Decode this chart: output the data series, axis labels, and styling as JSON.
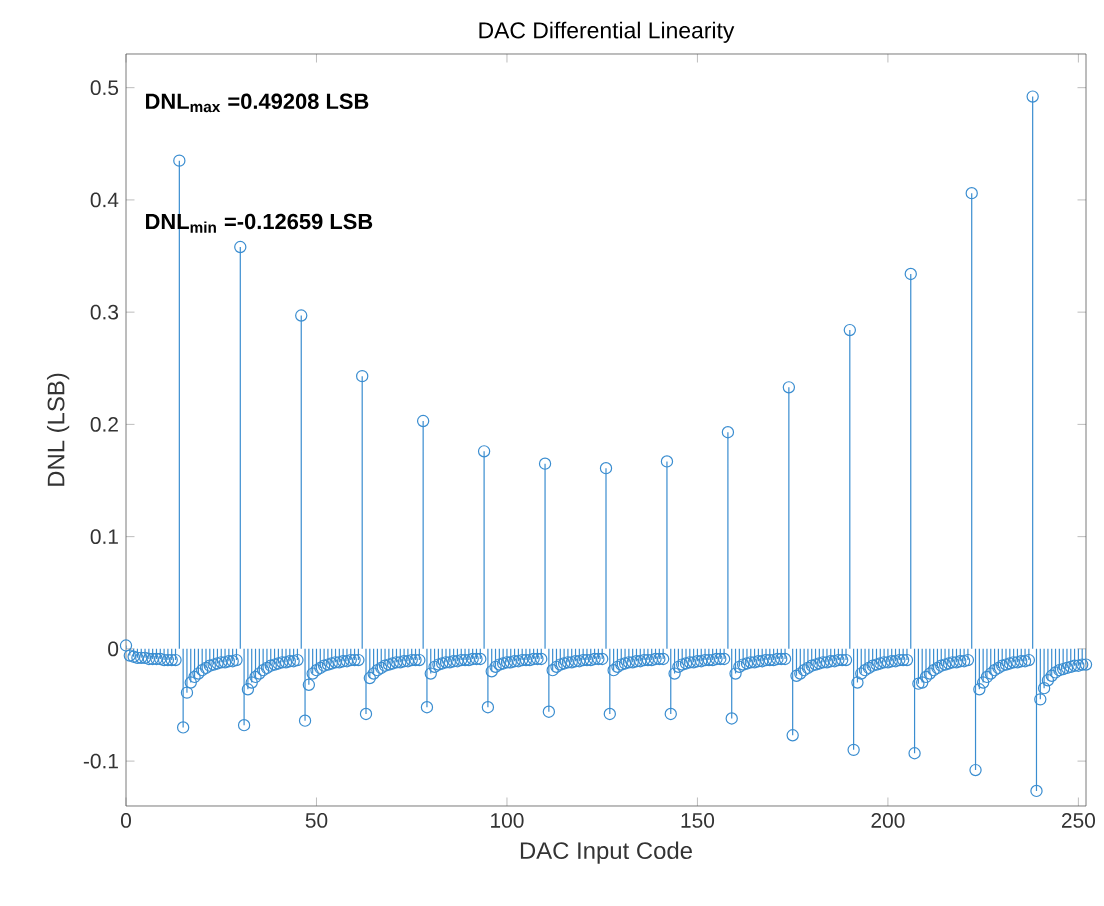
{
  "chart_data": {
    "type": "lollipop",
    "title": "DAC Differential Linearity",
    "xlabel": "DAC Input Code",
    "ylabel": "DNL (LSB)",
    "annotations": [
      "DNL$_{max}$ =0.49208 LSB",
      "DNL$_{min}$ =-0.12659 LSB"
    ],
    "x": [
      0,
      1,
      2,
      3,
      4,
      5,
      6,
      7,
      8,
      9,
      10,
      11,
      12,
      13,
      14,
      15,
      16,
      17,
      18,
      19,
      20,
      21,
      22,
      23,
      24,
      25,
      26,
      27,
      28,
      29,
      30,
      31,
      32,
      33,
      34,
      35,
      36,
      37,
      38,
      39,
      40,
      41,
      42,
      43,
      44,
      45,
      46,
      47,
      48,
      49,
      50,
      51,
      52,
      53,
      54,
      55,
      56,
      57,
      58,
      59,
      60,
      61,
      62,
      63,
      64,
      65,
      66,
      67,
      68,
      69,
      70,
      71,
      72,
      73,
      74,
      75,
      76,
      77,
      78,
      79,
      80,
      81,
      82,
      83,
      84,
      85,
      86,
      87,
      88,
      89,
      90,
      91,
      92,
      93,
      94,
      95,
      96,
      97,
      98,
      99,
      100,
      101,
      102,
      103,
      104,
      105,
      106,
      107,
      108,
      109,
      110,
      111,
      112,
      113,
      114,
      115,
      116,
      117,
      118,
      119,
      120,
      121,
      122,
      123,
      124,
      125,
      126,
      127,
      128,
      129,
      130,
      131,
      132,
      133,
      134,
      135,
      136,
      137,
      138,
      139,
      140,
      141,
      142,
      143,
      144,
      145,
      146,
      147,
      148,
      149,
      150,
      151,
      152,
      153,
      154,
      155,
      156,
      157,
      158,
      159,
      160,
      161,
      162,
      163,
      164,
      165,
      166,
      167,
      168,
      169,
      170,
      171,
      172,
      173,
      174,
      175,
      176,
      177,
      178,
      179,
      180,
      181,
      182,
      183,
      184,
      185,
      186,
      187,
      188,
      189,
      190,
      191,
      192,
      193,
      194,
      195,
      196,
      197,
      198,
      199,
      200,
      201,
      202,
      203,
      204,
      205,
      206,
      207,
      208,
      209,
      210,
      211,
      212,
      213,
      214,
      215,
      216,
      217,
      218,
      219,
      220,
      221,
      222,
      223,
      224,
      225,
      226,
      227,
      228,
      229,
      230,
      231,
      232,
      233,
      234,
      235,
      236,
      237,
      238,
      239,
      240,
      241,
      242,
      243,
      244,
      245,
      246,
      247,
      248,
      249,
      250,
      251,
      252
    ],
    "values": [
      0.003,
      -0.006,
      -0.007,
      -0.008,
      -0.008,
      -0.008,
      -0.009,
      -0.009,
      -0.009,
      -0.009,
      -0.01,
      -0.01,
      -0.01,
      -0.01,
      0.435,
      -0.07,
      -0.039,
      -0.03,
      -0.025,
      -0.022,
      -0.019,
      -0.017,
      -0.015,
      -0.014,
      -0.013,
      -0.012,
      -0.012,
      -0.011,
      -0.011,
      -0.01,
      0.358,
      -0.068,
      -0.036,
      -0.03,
      -0.025,
      -0.022,
      -0.019,
      -0.017,
      -0.015,
      -0.014,
      -0.013,
      -0.012,
      -0.012,
      -0.011,
      -0.011,
      -0.01,
      0.297,
      -0.064,
      -0.032,
      -0.022,
      -0.019,
      -0.017,
      -0.015,
      -0.014,
      -0.013,
      -0.012,
      -0.012,
      -0.011,
      -0.011,
      -0.01,
      -0.01,
      -0.01,
      0.243,
      -0.058,
      -0.026,
      -0.022,
      -0.019,
      -0.017,
      -0.015,
      -0.014,
      -0.013,
      -0.012,
      -0.012,
      -0.011,
      -0.011,
      -0.01,
      -0.01,
      -0.01,
      0.203,
      -0.052,
      -0.022,
      -0.016,
      -0.014,
      -0.013,
      -0.012,
      -0.012,
      -0.011,
      -0.011,
      -0.01,
      -0.01,
      -0.01,
      -0.009,
      -0.009,
      -0.009,
      0.176,
      -0.052,
      -0.02,
      -0.016,
      -0.014,
      -0.013,
      -0.012,
      -0.012,
      -0.011,
      -0.011,
      -0.01,
      -0.01,
      -0.01,
      -0.009,
      -0.009,
      -0.009,
      0.165,
      -0.056,
      -0.019,
      -0.016,
      -0.014,
      -0.013,
      -0.012,
      -0.012,
      -0.011,
      -0.011,
      -0.01,
      -0.01,
      -0.01,
      -0.009,
      -0.009,
      -0.009,
      0.161,
      -0.058,
      -0.019,
      -0.016,
      -0.014,
      -0.013,
      -0.012,
      -0.012,
      -0.011,
      -0.011,
      -0.01,
      -0.01,
      -0.01,
      -0.009,
      -0.009,
      -0.009,
      0.167,
      -0.058,
      -0.022,
      -0.016,
      -0.014,
      -0.013,
      -0.012,
      -0.012,
      -0.011,
      -0.011,
      -0.01,
      -0.01,
      -0.01,
      -0.009,
      -0.009,
      -0.009,
      0.193,
      -0.062,
      -0.022,
      -0.016,
      -0.014,
      -0.013,
      -0.012,
      -0.012,
      -0.011,
      -0.011,
      -0.01,
      -0.01,
      -0.01,
      -0.009,
      -0.009,
      -0.009,
      0.233,
      -0.077,
      -0.024,
      -0.022,
      -0.019,
      -0.017,
      -0.015,
      -0.014,
      -0.013,
      -0.012,
      -0.012,
      -0.011,
      -0.011,
      -0.01,
      -0.01,
      -0.01,
      0.284,
      -0.09,
      -0.03,
      -0.022,
      -0.019,
      -0.017,
      -0.015,
      -0.014,
      -0.013,
      -0.012,
      -0.012,
      -0.011,
      -0.011,
      -0.01,
      -0.01,
      -0.01,
      0.334,
      -0.093,
      -0.031,
      -0.03,
      -0.025,
      -0.022,
      -0.019,
      -0.017,
      -0.015,
      -0.014,
      -0.013,
      -0.012,
      -0.012,
      -0.011,
      -0.011,
      -0.01,
      0.406,
      -0.108,
      -0.036,
      -0.03,
      -0.025,
      -0.022,
      -0.019,
      -0.017,
      -0.015,
      -0.014,
      -0.013,
      -0.012,
      -0.012,
      -0.011,
      -0.011,
      -0.01,
      0.49208,
      -0.12659,
      -0.045,
      -0.035,
      -0.028,
      -0.024,
      -0.021,
      -0.019,
      -0.018,
      -0.017,
      -0.016,
      -0.015,
      -0.015,
      -0.014,
      -0.014
    ],
    "color": "#3a8dd0",
    "marker": "circle",
    "xlim": [
      0,
      252
    ],
    "ylim": [
      -0.14,
      0.53
    ],
    "xticks": [
      0,
      50,
      100,
      150,
      200,
      250
    ],
    "yticks": [
      -0.1,
      0,
      0.1,
      0.2,
      0.3,
      0.4,
      0.5
    ]
  }
}
